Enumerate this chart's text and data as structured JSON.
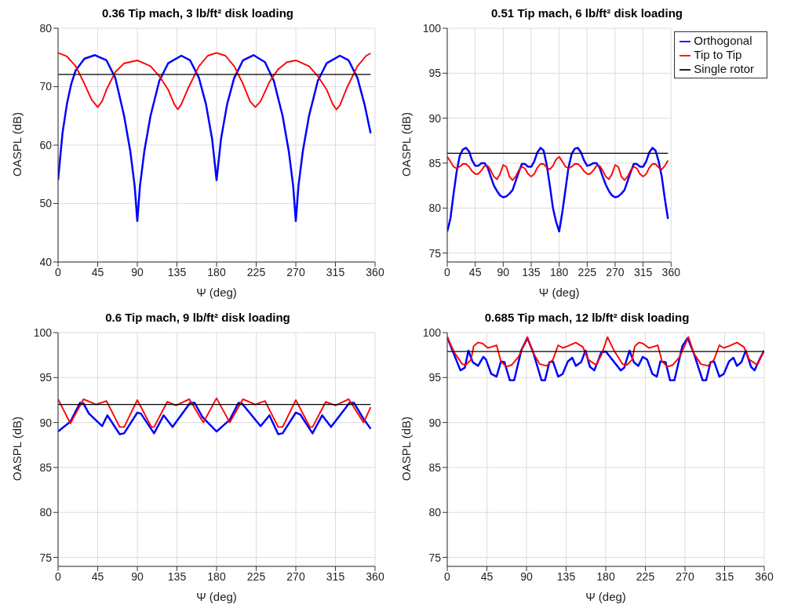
{
  "chart_data": [
    {
      "type": "line",
      "title": "0.36 Tip mach, 3 lb/ft² disk loading",
      "xlabel": "Ψ (deg)",
      "ylabel": "OASPL (dB)",
      "xlim": [
        0,
        360
      ],
      "xticks": [
        0,
        45,
        90,
        135,
        180,
        225,
        270,
        315,
        360
      ],
      "ylim": [
        40,
        80
      ],
      "yticks": [
        40,
        50,
        60,
        70,
        80
      ],
      "grid": true,
      "legend": false,
      "series": [
        {
          "color": "#0000ff",
          "x": [
            0,
            5,
            10,
            15,
            20,
            30,
            42,
            55,
            65,
            75,
            82,
            87,
            90,
            93,
            98,
            105,
            115,
            125,
            140,
            150,
            160,
            168,
            175,
            180,
            185,
            192,
            200,
            210,
            222,
            235,
            245,
            255,
            262,
            267,
            270,
            273,
            278,
            285,
            295,
            305,
            320,
            330,
            340,
            348,
            355
          ],
          "values": [
            54,
            62,
            67,
            70.5,
            72.8,
            74.8,
            75.4,
            74.5,
            71.5,
            65,
            59,
            53,
            47,
            53,
            59,
            65,
            71,
            74,
            75.3,
            74.5,
            71.5,
            67,
            61,
            54,
            61,
            67,
            71.5,
            74.5,
            75.4,
            74.2,
            71,
            65,
            59,
            53,
            47,
            53,
            59,
            65,
            71,
            74,
            75.3,
            74.5,
            71.5,
            67,
            62
          ]
        },
        {
          "color": "#ff0000",
          "x": [
            0,
            10,
            20,
            30,
            38,
            45,
            50,
            55,
            65,
            75,
            90,
            105,
            115,
            125,
            132,
            136,
            140,
            148,
            160,
            170,
            180,
            190,
            200,
            210,
            218,
            224,
            230,
            240,
            250,
            260,
            270,
            285,
            295,
            305,
            312,
            316,
            320,
            328,
            340,
            350,
            355
          ],
          "values": [
            75.8,
            75.2,
            73.5,
            70.5,
            67.8,
            66.5,
            67.5,
            69.5,
            72.5,
            74,
            74.5,
            73.5,
            71.8,
            69.5,
            67,
            66.1,
            67,
            69.8,
            73.5,
            75.3,
            75.8,
            75.3,
            73.5,
            70.5,
            67.5,
            66.5,
            67.5,
            70.8,
            73,
            74.2,
            74.5,
            73.5,
            71.8,
            69.5,
            67,
            66.1,
            66.8,
            69.8,
            73.5,
            75.3,
            75.7
          ]
        },
        {
          "color": "#000000",
          "x": [
            0,
            355
          ],
          "values": [
            72.1,
            72.1
          ]
        }
      ]
    },
    {
      "type": "line",
      "title": "0.51 Tip mach, 6 lb/ft² disk loading",
      "xlabel": "Ψ (deg)",
      "ylabel": "OASPL (dB)",
      "xlim": [
        0,
        360
      ],
      "xticks": [
        0,
        45,
        90,
        135,
        180,
        225,
        270,
        315,
        360
      ],
      "ylim": [
        74,
        100
      ],
      "yticks": [
        75,
        80,
        85,
        90,
        95,
        100
      ],
      "grid": true,
      "legend": "top right",
      "series": [
        {
          "name": "Orthogonal",
          "color": "#0000ff",
          "x": [
            0,
            5,
            10,
            15,
            20,
            25,
            30,
            35,
            40,
            45,
            50,
            55,
            60,
            65,
            70,
            75,
            80,
            85,
            90,
            95,
            100,
            105,
            110,
            115,
            120,
            125,
            130,
            135,
            140,
            145,
            150,
            155,
            160,
            165,
            170,
            175,
            180,
            185,
            190,
            195,
            200,
            205,
            210,
            215,
            220,
            225,
            230,
            235,
            240,
            245,
            250,
            255,
            260,
            265,
            270,
            275,
            280,
            285,
            290,
            295,
            300,
            305,
            310,
            315,
            320,
            325,
            330,
            335,
            340,
            345,
            350,
            355
          ],
          "values": [
            77.4,
            78.8,
            81.5,
            84,
            85.8,
            86.5,
            86.7,
            86.3,
            85.3,
            84.7,
            84.7,
            85,
            85,
            84.5,
            83.5,
            82.5,
            81.9,
            81.4,
            81.2,
            81.3,
            81.6,
            82,
            83,
            84,
            84.9,
            84.9,
            84.6,
            84.6,
            85.2,
            86.2,
            86.7,
            86.4,
            84.8,
            82.5,
            80,
            78.5,
            77.4,
            79.5,
            82,
            84.5,
            86,
            86.6,
            86.7,
            86.2,
            85.3,
            84.7,
            84.8,
            85,
            85,
            84.5,
            83.5,
            82.6,
            81.9,
            81.4,
            81.2,
            81.3,
            81.6,
            82,
            83,
            84,
            84.9,
            84.9,
            84.6,
            84.6,
            85.2,
            86.2,
            86.7,
            86.4,
            85.2,
            83.5,
            81,
            78.8
          ]
        },
        {
          "name": "Tip to Tip",
          "color": "#ff0000",
          "x": [
            0,
            5,
            10,
            15,
            20,
            25,
            30,
            35,
            40,
            45,
            50,
            55,
            60,
            65,
            70,
            75,
            80,
            85,
            90,
            95,
            100,
            105,
            110,
            115,
            120,
            125,
            130,
            135,
            140,
            145,
            150,
            155,
            160,
            165,
            170,
            175,
            180,
            185,
            190,
            195,
            200,
            205,
            210,
            215,
            220,
            225,
            230,
            235,
            240,
            245,
            250,
            255,
            260,
            265,
            270,
            275,
            280,
            285,
            290,
            295,
            300,
            305,
            310,
            315,
            320,
            325,
            330,
            335,
            340,
            345,
            350,
            355
          ],
          "values": [
            85.7,
            85.2,
            84.6,
            84.4,
            84.6,
            84.9,
            84.9,
            84.6,
            84.1,
            83.8,
            83.8,
            84.2,
            84.7,
            84.7,
            84.2,
            83.5,
            83.2,
            83.8,
            84.8,
            84.6,
            83.5,
            83.1,
            83.5,
            84.2,
            84.6,
            84.4,
            83.8,
            83.5,
            83.8,
            84.5,
            84.9,
            84.9,
            84.5,
            84.3,
            84.7,
            85.4,
            85.7,
            85.2,
            84.6,
            84.4,
            84.6,
            84.9,
            84.9,
            84.6,
            84.1,
            83.8,
            83.8,
            84.2,
            84.7,
            84.7,
            84.2,
            83.5,
            83.2,
            83.8,
            84.8,
            84.6,
            83.5,
            83.1,
            83.5,
            84.2,
            84.6,
            84.4,
            83.8,
            83.5,
            83.8,
            84.5,
            84.9,
            84.9,
            84.5,
            84.3,
            84.7,
            85.3
          ]
        },
        {
          "name": "Single rotor",
          "color": "#000000",
          "x": [
            0,
            355
          ],
          "values": [
            86.1,
            86.1
          ]
        }
      ]
    },
    {
      "type": "line",
      "title": "0.6 Tip mach, 9 lb/ft² disk loading",
      "xlabel": "Ψ (deg)",
      "ylabel": "OASPL (dB)",
      "xlim": [
        0,
        360
      ],
      "xticks": [
        0,
        45,
        90,
        135,
        180,
        225,
        270,
        315,
        360
      ],
      "ylim": [
        74,
        100
      ],
      "yticks": [
        75,
        80,
        85,
        90,
        95,
        100
      ],
      "grid": true,
      "legend": false,
      "series": [
        {
          "color": "#0000ff",
          "x": [
            0,
            14,
            25,
            29,
            35,
            50,
            56,
            70,
            75,
            90,
            94,
            109,
            120,
            130,
            150,
            155,
            164,
            180,
            195,
            205,
            209,
            230,
            240,
            250,
            255,
            270,
            275,
            289,
            300,
            310,
            331,
            336,
            347,
            355
          ],
          "values": [
            89,
            90.1,
            92.2,
            92.1,
            91,
            89.6,
            90.8,
            88.7,
            88.8,
            91.1,
            91,
            88.8,
            90.8,
            89.5,
            92.2,
            92.2,
            90.6,
            89,
            90.3,
            92.2,
            92.1,
            89.6,
            90.8,
            88.7,
            88.8,
            91.1,
            90.9,
            88.8,
            90.8,
            89.5,
            92.2,
            92.2,
            90.4,
            89.3
          ]
        },
        {
          "color": "#ff0000",
          "x": [
            0,
            14,
            29,
            43,
            55,
            70,
            75,
            90,
            106,
            109,
            124,
            134,
            149,
            165,
            180,
            195,
            210,
            224,
            235,
            250,
            255,
            270,
            286,
            289,
            304,
            315,
            330,
            347,
            355
          ],
          "values": [
            92.6,
            89.9,
            92.6,
            92,
            92.4,
            89.5,
            89.5,
            92.5,
            89.5,
            89.5,
            92.3,
            91.9,
            92.6,
            90,
            92.7,
            90,
            92.6,
            92,
            92.4,
            89.5,
            89.5,
            92.5,
            89.5,
            89.5,
            92.3,
            91.9,
            92.6,
            90,
            91.7
          ]
        },
        {
          "color": "#000000",
          "x": [
            0,
            355
          ],
          "values": [
            92,
            92
          ]
        }
      ]
    },
    {
      "type": "line",
      "title": "0.685 Tip mach, 12 lb/ft² disk loading",
      "xlabel": "Ψ (deg)",
      "ylabel": "OASPL (dB)",
      "xlim": [
        0,
        360
      ],
      "xticks": [
        0,
        45,
        90,
        135,
        180,
        225,
        270,
        315,
        360
      ],
      "ylim": [
        74,
        100
      ],
      "yticks": [
        75,
        80,
        85,
        90,
        95,
        100
      ],
      "grid": true,
      "legend": false,
      "series": [
        {
          "color": "#0000ff",
          "x": [
            0,
            6,
            15,
            20,
            24,
            29,
            35,
            41,
            44,
            50,
            56,
            61,
            65,
            71,
            76,
            84,
            91,
            98,
            107,
            111,
            116,
            120,
            126,
            131,
            137,
            142,
            146,
            152,
            157,
            162,
            167,
            175,
            180,
            197,
            201,
            207,
            212,
            217,
            222,
            227,
            233,
            238,
            242,
            248,
            253,
            258,
            267,
            273,
            280,
            290,
            294,
            299,
            303,
            309,
            314,
            320,
            325,
            329,
            334,
            339,
            345,
            349,
            355,
            360
          ],
          "values": [
            99.5,
            98,
            95.8,
            96.1,
            98,
            96.7,
            96.3,
            97.3,
            97,
            95.4,
            95.1,
            96.8,
            96.7,
            94.7,
            94.7,
            98,
            99.4,
            97.7,
            94.7,
            94.7,
            96.7,
            96.8,
            95.1,
            95.4,
            96.8,
            97.2,
            96.3,
            96.7,
            98,
            96.2,
            95.8,
            97.8,
            97.9,
            95.8,
            96.1,
            98,
            96.7,
            96.3,
            97.3,
            97,
            95.4,
            95.1,
            96.8,
            96.7,
            94.7,
            94.7,
            98.5,
            99.4,
            97.7,
            94.7,
            94.7,
            96.7,
            96.8,
            95.1,
            95.4,
            96.8,
            97.2,
            96.3,
            96.7,
            98,
            96.2,
            95.8,
            97.1,
            98
          ]
        },
        {
          "color": "#ff0000",
          "x": [
            0,
            8,
            17,
            21,
            27,
            30,
            35,
            40,
            46,
            50,
            56,
            61,
            67,
            73,
            81,
            91,
            98,
            105,
            113,
            120,
            126,
            131,
            137,
            146,
            154,
            160,
            169,
            175,
            182,
            190,
            199,
            204,
            210,
            213,
            218,
            222,
            229,
            233,
            239,
            244,
            250,
            256,
            264,
            274,
            280,
            288,
            296,
            303,
            309,
            314,
            320,
            329,
            337,
            343,
            352,
            360
          ],
          "values": [
            99.5,
            97.8,
            96.5,
            96.4,
            97,
            98.5,
            98.9,
            98.8,
            98.3,
            98.4,
            98.6,
            96.8,
            96.2,
            96.4,
            97.3,
            99.5,
            97.7,
            96.5,
            96.3,
            97,
            98.6,
            98.3,
            98.5,
            98.9,
            98.4,
            97,
            96.4,
            97.5,
            99.5,
            97.9,
            96.5,
            96.4,
            97,
            98.5,
            98.9,
            98.8,
            98.3,
            98.4,
            98.6,
            96.8,
            96.2,
            96.4,
            97.3,
            99.5,
            97.7,
            96.5,
            96.3,
            97,
            98.6,
            98.3,
            98.5,
            98.9,
            98.4,
            97,
            96.4,
            98
          ]
        },
        {
          "color": "#000000",
          "x": [
            0,
            360
          ],
          "values": [
            97.9,
            97.9
          ]
        }
      ]
    }
  ]
}
